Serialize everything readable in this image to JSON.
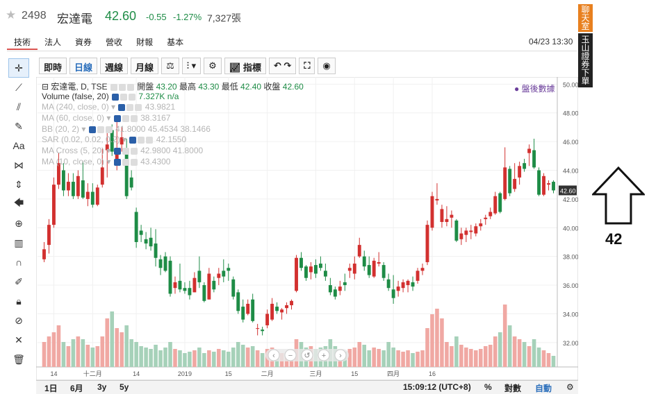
{
  "header": {
    "code": "2498",
    "name": "宏達電",
    "price": "42.60",
    "change": "-0.55",
    "change_pct": "-1.27%",
    "volume": "7,327張",
    "datetime": "04/23 13:30"
  },
  "tabs": [
    {
      "label": "技術",
      "active": true
    },
    {
      "label": "法人"
    },
    {
      "label": "資券"
    },
    {
      "label": "營收"
    },
    {
      "label": "財報"
    },
    {
      "label": "基本"
    }
  ],
  "side_tabs": {
    "chat": "聊天室",
    "broker": "玉山證券下單"
  },
  "toolbar": {
    "intraday": "即時",
    "daily": "日線",
    "weekly": "週線",
    "monthly": "月線",
    "indicators": "指標"
  },
  "legend": {
    "title": "宏達電, D, TSE",
    "open_label": "開盤",
    "open": "43.20",
    "high_label": "最高",
    "high": "43.30",
    "low_label": "最低",
    "low": "42.40",
    "close_label": "收盤",
    "close": "42.60",
    "volume_label": "Volume (false, 20)",
    "volume_val": "7.327K",
    "volume_na": "n/a",
    "rows": [
      {
        "label": "MA (240, close, 0)",
        "values": "43.9821"
      },
      {
        "label": "MA (60, close, 0)",
        "values": "38.3167"
      },
      {
        "label": "BB (20, 2)",
        "values": "41.8000  45.4534  38.1466"
      },
      {
        "label": "SAR (0.02, 0.02, 0.2)",
        "values": "42.1550"
      },
      {
        "label": "MA Cross (5, 20)",
        "values": "42.9800  41.8000"
      },
      {
        "label": "MA (10, close, 0)",
        "values": "43.4300"
      }
    ],
    "after_hours": "● 盤後數據"
  },
  "bottom": {
    "r1d": "1日",
    "r6m": "6月",
    "r3y": "3y",
    "r5y": "5y",
    "time": "15:09:12 (UTC+8)",
    "pct": "%",
    "log": "對數",
    "auto": "自動"
  },
  "annotation": {
    "text": "42"
  },
  "chart_data": {
    "type": "candlestick",
    "y_axis": {
      "ticks": [
        32,
        34,
        36,
        38,
        40,
        42,
        44,
        46,
        48,
        50
      ],
      "ylim": [
        30.3,
        50.5
      ],
      "last_price_label": "42.60"
    },
    "x_labels": [
      "14",
      "十二月",
      "14",
      "2019",
      "15",
      "二月",
      "三月",
      "15",
      "四月",
      "16"
    ],
    "x_label_idx": [
      2,
      10,
      19,
      29,
      38,
      46,
      56,
      64,
      72,
      80
    ],
    "colors": {
      "up": "#d2302f",
      "down": "#1e8c46",
      "vol_up": "#f0a8a3",
      "vol_down": "#a6d1b9"
    },
    "ohlc": [
      [
        37.8,
        39.0,
        37.6,
        38.5
      ],
      [
        38.8,
        40.6,
        38.2,
        40.2
      ],
      [
        40.2,
        43.5,
        40.0,
        43.0
      ],
      [
        43.0,
        45.2,
        42.7,
        44.5
      ],
      [
        44.0,
        44.5,
        42.2,
        42.6
      ],
      [
        42.6,
        43.8,
        42.2,
        43.2
      ],
      [
        43.2,
        43.8,
        42.0,
        42.2
      ],
      [
        42.2,
        44.0,
        42.0,
        43.6
      ],
      [
        43.3,
        44.6,
        42.0,
        42.1
      ],
      [
        42.0,
        43.1,
        41.5,
        42.5
      ],
      [
        42.5,
        43.1,
        41.4,
        41.6
      ],
      [
        41.6,
        43.0,
        41.5,
        42.8
      ],
      [
        43.0,
        45.5,
        42.8,
        44.2
      ],
      [
        45.4,
        46.6,
        43.5,
        45.8
      ],
      [
        46.8,
        47.2,
        45.0,
        45.3
      ],
      [
        44.5,
        47.5,
        44.0,
        45.5
      ],
      [
        45.8,
        47.0,
        45.3,
        46.3
      ],
      [
        45.5,
        46.2,
        42.0,
        42.2
      ],
      [
        43.5,
        44.0,
        42.6,
        42.8
      ],
      [
        41.1,
        41.4,
        38.6,
        39.0
      ],
      [
        39.8,
        40.2,
        39.0,
        39.5
      ],
      [
        39.2,
        39.7,
        38.5,
        38.9
      ],
      [
        39.3,
        40.0,
        38.4,
        38.7
      ],
      [
        38.9,
        39.9,
        37.3,
        37.9
      ],
      [
        37.8,
        38.1,
        36.7,
        37.2
      ],
      [
        38.0,
        38.3,
        36.9,
        37.0
      ],
      [
        37.7,
        38.0,
        35.2,
        35.4
      ],
      [
        35.8,
        36.6,
        35.4,
        36.2
      ],
      [
        36.3,
        37.5,
        35.5,
        35.7
      ],
      [
        35.8,
        36.2,
        35.4,
        35.6
      ],
      [
        35.8,
        36.3,
        35.0,
        35.3
      ],
      [
        35.5,
        36.9,
        35.5,
        36.5
      ],
      [
        37.0,
        38.0,
        35.8,
        36.2
      ],
      [
        36.0,
        36.2,
        34.8,
        34.9
      ],
      [
        35.0,
        37.2,
        35.0,
        36.8
      ],
      [
        36.3,
        36.6,
        35.5,
        35.7
      ],
      [
        36.5,
        37.2,
        36.0,
        36.8
      ],
      [
        37.0,
        37.8,
        36.2,
        36.6
      ],
      [
        37.2,
        37.5,
        36.3,
        37.0
      ],
      [
        36.4,
        36.6,
        35.0,
        35.2
      ],
      [
        35.5,
        35.7,
        34.0,
        34.2
      ],
      [
        34.5,
        35.0,
        33.4,
        33.6
      ],
      [
        34.0,
        35.0,
        33.9,
        34.7
      ],
      [
        35.0,
        35.4,
        33.4,
        33.5
      ],
      [
        33.0,
        33.3,
        32.5,
        33.0
      ],
      [
        32.9,
        33.1,
        32.5,
        32.8
      ],
      [
        33.2,
        34.3,
        33.0,
        34.0
      ],
      [
        33.6,
        35.1,
        33.5,
        34.7
      ],
      [
        34.5,
        34.8,
        34.0,
        34.2
      ],
      [
        34.1,
        34.4,
        33.6,
        34.3
      ],
      [
        34.4,
        34.8,
        34.0,
        34.6
      ],
      [
        34.6,
        35.0,
        34.3,
        34.9
      ],
      [
        35.6,
        38.1,
        35.5,
        37.9
      ],
      [
        37.9,
        38.3,
        37.0,
        37.2
      ],
      [
        37.3,
        37.4,
        36.3,
        36.5
      ],
      [
        36.9,
        37.6,
        36.4,
        37.3
      ],
      [
        37.4,
        37.8,
        36.5,
        36.8
      ],
      [
        37.5,
        38.0,
        37.0,
        37.2
      ],
      [
        37.0,
        37.5,
        36.3,
        36.6
      ],
      [
        36.0,
        36.5,
        35.3,
        35.5
      ],
      [
        35.7,
        35.9,
        35.0,
        35.2
      ],
      [
        35.6,
        36.3,
        35.3,
        35.9
      ],
      [
        36.2,
        36.8,
        35.6,
        36.0
      ],
      [
        37.0,
        37.5,
        36.5,
        37.2
      ],
      [
        36.8,
        38.0,
        36.4,
        37.5
      ],
      [
        38.0,
        39.3,
        37.9,
        38.8
      ],
      [
        38.0,
        38.4,
        37.0,
        37.3
      ],
      [
        37.4,
        38.0,
        36.5,
        36.7
      ],
      [
        36.6,
        37.9,
        36.5,
        37.7
      ],
      [
        37.5,
        38.3,
        37.3,
        37.6
      ],
      [
        37.4,
        37.6,
        36.3,
        36.5
      ],
      [
        36.4,
        36.8,
        35.6,
        35.8
      ],
      [
        35.7,
        36.7,
        34.7,
        35.1
      ],
      [
        35.6,
        36.3,
        35.2,
        35.9
      ],
      [
        35.8,
        36.4,
        35.5,
        36.2
      ],
      [
        36.0,
        36.4,
        35.5,
        36.3
      ],
      [
        36.2,
        36.6,
        35.6,
        35.9
      ],
      [
        36.3,
        37.2,
        36.1,
        37.0
      ],
      [
        37.0,
        37.5,
        36.7,
        37.2
      ],
      [
        37.6,
        40.5,
        37.4,
        40.2
      ],
      [
        40.0,
        42.5,
        39.8,
        42.2
      ],
      [
        41.9,
        43.1,
        41.6,
        42.0
      ],
      [
        40.4,
        41.6,
        40.0,
        41.3
      ],
      [
        40.4,
        41.5,
        40.1,
        40.6
      ],
      [
        40.7,
        41.2,
        40.0,
        40.9
      ],
      [
        40.5,
        40.6,
        39.0,
        39.1
      ],
      [
        39.2,
        40.0,
        38.8,
        39.6
      ],
      [
        39.5,
        40.0,
        39.0,
        39.8
      ],
      [
        39.7,
        40.2,
        39.2,
        39.8
      ],
      [
        39.6,
        40.3,
        39.4,
        40.1
      ],
      [
        40.1,
        40.6,
        39.8,
        40.3
      ],
      [
        40.6,
        40.9,
        40.2,
        40.7
      ],
      [
        40.8,
        41.4,
        40.6,
        41.1
      ],
      [
        41.0,
        42.5,
        40.9,
        42.2
      ],
      [
        42.4,
        42.5,
        41.0,
        41.1
      ],
      [
        42.0,
        45.6,
        41.9,
        44.2
      ],
      [
        44.1,
        44.3,
        42.2,
        42.4
      ],
      [
        42.7,
        44.5,
        42.5,
        43.4
      ],
      [
        43.5,
        44.6,
        43.0,
        44.3
      ],
      [
        44.5,
        44.8,
        43.9,
        44.1
      ],
      [
        45.2,
        45.8,
        44.3,
        45.5
      ],
      [
        45.4,
        46.2,
        44.1,
        44.2
      ],
      [
        44.0,
        44.2,
        42.2,
        42.3
      ],
      [
        42.3,
        43.8,
        42.2,
        43.6
      ],
      [
        43.0,
        43.3,
        42.6,
        43.1
      ],
      [
        43.2,
        43.3,
        42.4,
        42.6
      ]
    ],
    "volume": [
      18,
      22,
      25,
      30,
      18,
      15,
      20,
      22,
      20,
      16,
      14,
      15,
      22,
      35,
      40,
      28,
      25,
      30,
      20,
      18,
      15,
      14,
      13,
      16,
      12,
      14,
      18,
      13,
      12,
      10,
      11,
      12,
      14,
      10,
      12,
      11,
      13,
      12,
      11,
      14,
      18,
      16,
      14,
      15,
      12,
      10,
      13,
      14,
      11,
      10,
      10,
      11,
      20,
      18,
      14,
      15,
      13,
      14,
      15,
      20,
      15,
      12,
      11,
      13,
      14,
      18,
      16,
      12,
      14,
      13,
      12,
      18,
      14,
      12,
      11,
      12,
      10,
      11,
      12,
      28,
      38,
      42,
      35,
      18,
      15,
      22,
      16,
      14,
      13,
      12,
      13,
      15,
      16,
      22,
      25,
      45,
      30,
      22,
      20,
      18,
      15,
      20,
      14,
      12,
      10,
      8
    ]
  }
}
